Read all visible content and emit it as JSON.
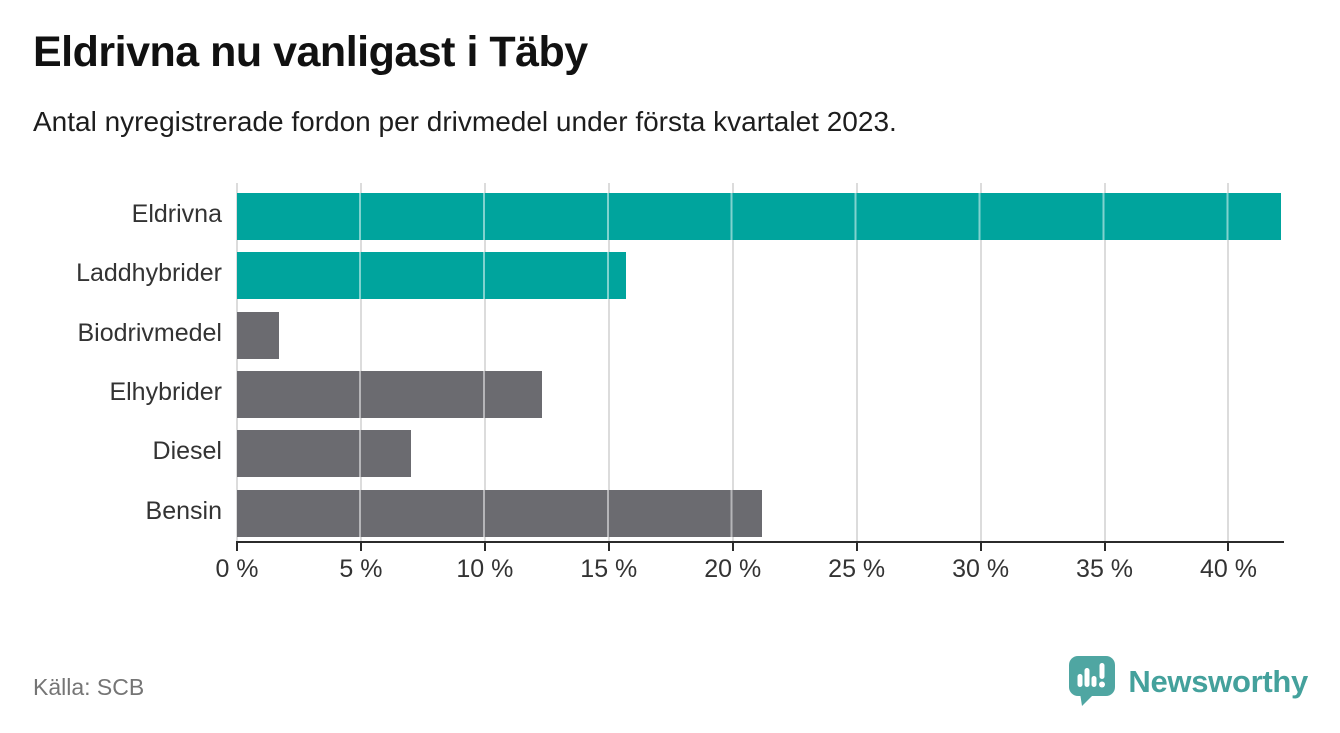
{
  "header": {
    "title": "Eldrivna nu vanligast i Täby",
    "subtitle": "Antal nyregistrerade fordon per drivmedel under första kvartalet 2023."
  },
  "chart_data": {
    "type": "bar",
    "orientation": "horizontal",
    "title": "Eldrivna nu vanligast i Täby",
    "subtitle": "Antal nyregistrerade fordon per drivmedel under första kvartalet 2023.",
    "categories": [
      "Eldrivna",
      "Laddhybrider",
      "Biodrivmedel",
      "Elhybrider",
      "Diesel",
      "Bensin"
    ],
    "values": [
      42.1,
      15.7,
      1.7,
      12.3,
      7.0,
      21.2
    ],
    "unit": "%",
    "bar_colors": [
      "#00a49d",
      "#00a49d",
      "#6b6b70",
      "#6b6b70",
      "#6b6b70",
      "#6b6b70"
    ],
    "xlabel": "",
    "ylabel": "",
    "xlim": [
      0,
      42.2
    ],
    "xticks": [
      0,
      5,
      10,
      15,
      20,
      25,
      30,
      35,
      40
    ],
    "xtick_labels": [
      "0 %",
      "5 %",
      "10 %",
      "15 %",
      "20 %",
      "25 %",
      "30 %",
      "35 %",
      "40 %"
    ],
    "grid": true,
    "legend": false,
    "colors": {
      "accent_teal": "#00a49d",
      "neutral_gray": "#6b6b70",
      "gridline": "#dcdcdc",
      "axis": "#2b2b2b",
      "label_text": "#333333"
    }
  },
  "footer": {
    "source": "Källa: SCB",
    "brand": "Newsworthy",
    "brand_color": "#44a19c"
  }
}
